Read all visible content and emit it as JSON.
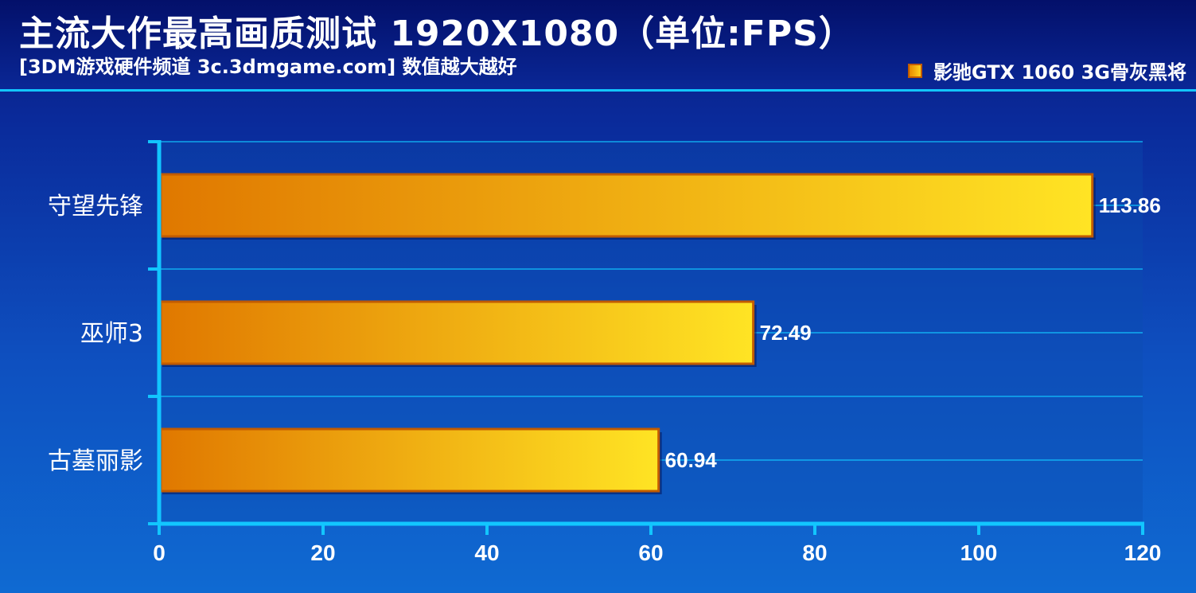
{
  "header": {
    "title": "主流大作最高画质测试  1920X1080（单位:FPS）",
    "subtitle": "[3DM游戏硬件频道 3c.3dmgame.com] 数值越大越好",
    "legend_label": "影驰GTX 1060 3G骨灰黑将"
  },
  "colors": {
    "background_top": "#061a7a",
    "background_bottom": "#0f6ad2",
    "axis": "#12c6ff",
    "bar_start": "#e07800",
    "bar_end": "#ffe424",
    "bar_border": "#c15b00",
    "text": "#ffffff"
  },
  "chart_data": {
    "type": "bar",
    "orientation": "horizontal",
    "title": "主流大作最高画质测试  1920X1080（单位:FPS）",
    "subtitle": "[3DM游戏硬件频道 3c.3dmgame.com] 数值越大越好",
    "categories": [
      "守望先锋",
      "巫师3",
      "古墓丽影"
    ],
    "series": [
      {
        "name": "影驰GTX 1060 3G骨灰黑将",
        "values": [
          113.86,
          72.49,
          60.94
        ]
      }
    ],
    "value_labels": [
      "113.86",
      "72.49",
      "60.94"
    ],
    "xlim": [
      0,
      120
    ],
    "xticks": [
      0,
      20,
      40,
      60,
      80,
      100,
      120
    ],
    "xtick_labels": [
      "0",
      "20",
      "40",
      "60",
      "80",
      "100",
      "120"
    ],
    "grid": true,
    "legend_position": "top-right"
  }
}
